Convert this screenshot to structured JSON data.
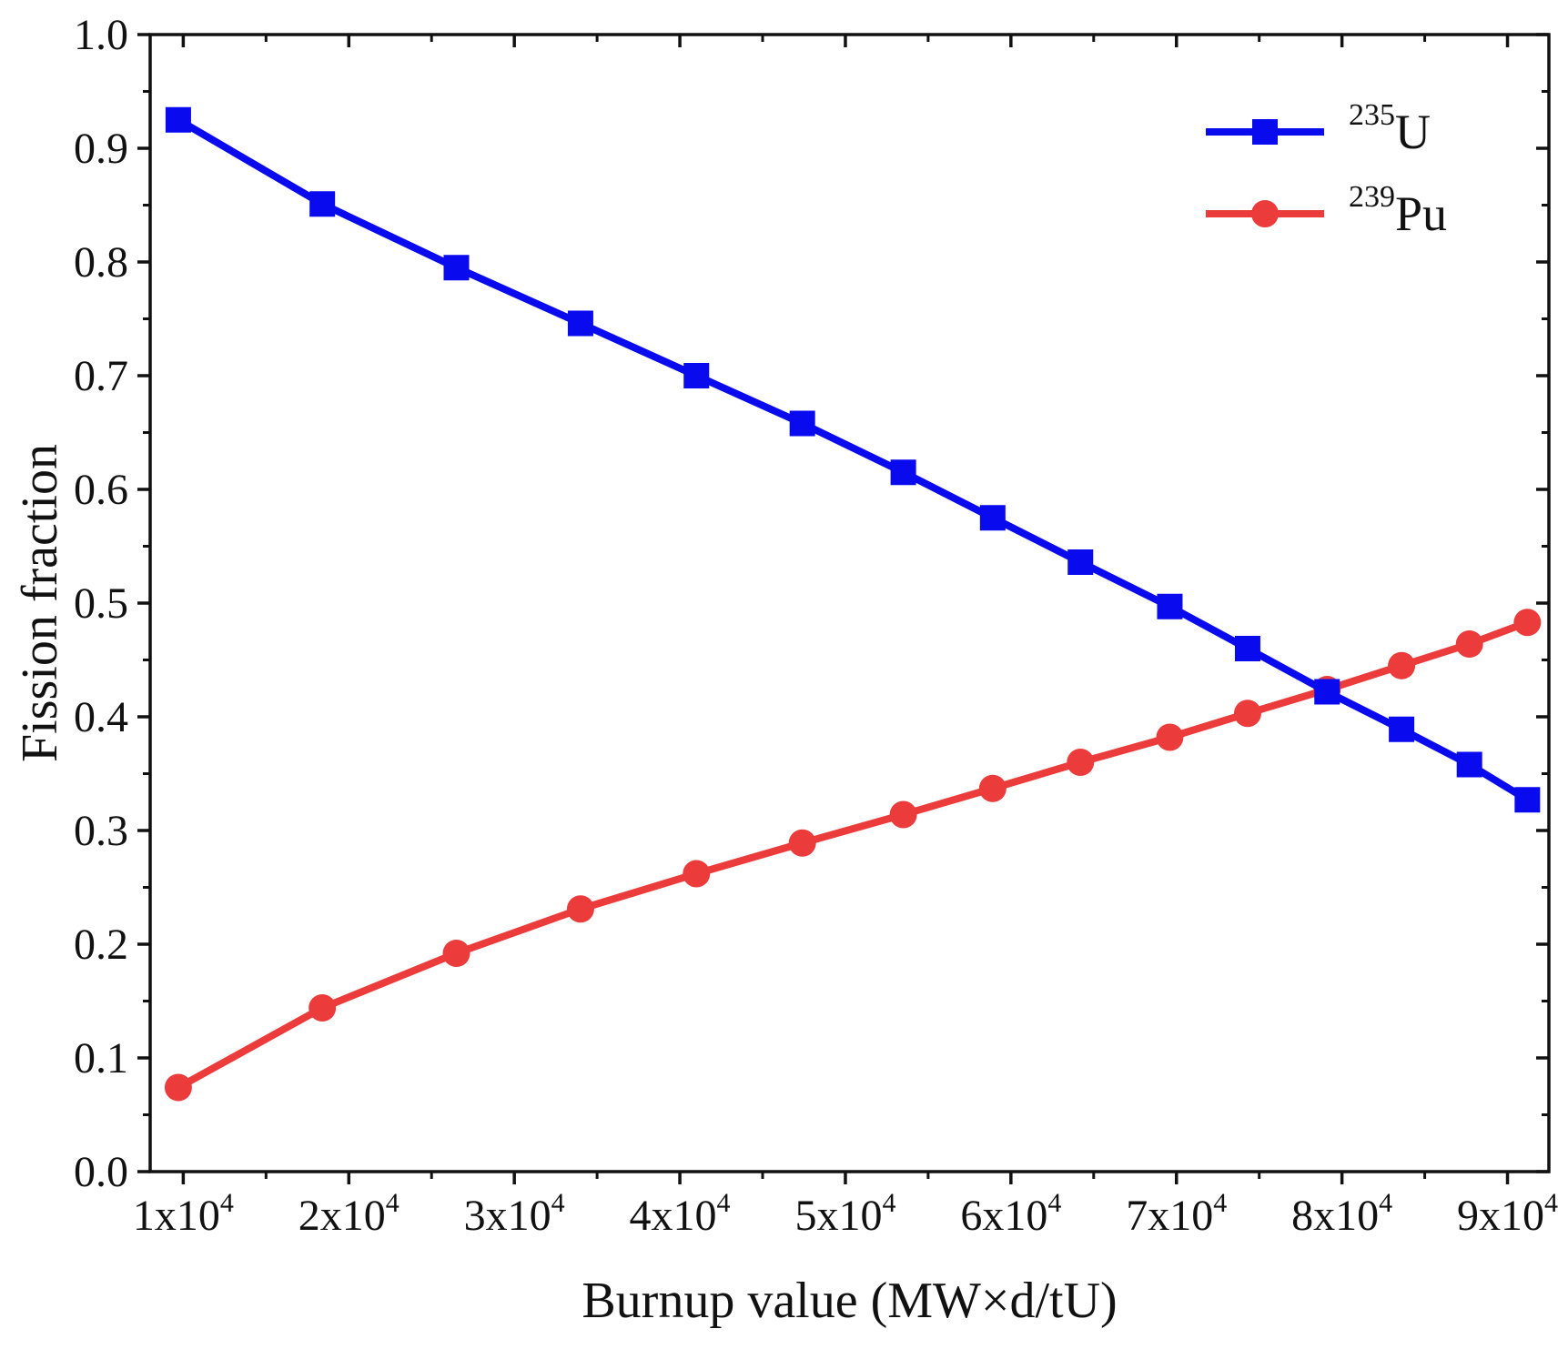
{
  "chart_data": {
    "type": "line",
    "title": "",
    "xlabel": "Burnup value (MW×d/tU)",
    "ylabel": "Fission fraction",
    "xlim": [
      8000,
      92500
    ],
    "ylim": [
      0.0,
      1.0
    ],
    "grid": false,
    "legend_position": "top-right",
    "x_ticks": [
      {
        "value": 10000,
        "mantissa": "1x10",
        "exponent": "4"
      },
      {
        "value": 20000,
        "mantissa": "2x10",
        "exponent": "4"
      },
      {
        "value": 30000,
        "mantissa": "3x10",
        "exponent": "4"
      },
      {
        "value": 40000,
        "mantissa": "4x10",
        "exponent": "4"
      },
      {
        "value": 50000,
        "mantissa": "5x10",
        "exponent": "4"
      },
      {
        "value": 60000,
        "mantissa": "6x10",
        "exponent": "4"
      },
      {
        "value": 70000,
        "mantissa": "7x10",
        "exponent": "4"
      },
      {
        "value": 80000,
        "mantissa": "8x10",
        "exponent": "4"
      },
      {
        "value": 90000,
        "mantissa": "9x10",
        "exponent": "4"
      }
    ],
    "y_ticks": [
      "0.0",
      "0.1",
      "0.2",
      "0.3",
      "0.4",
      "0.5",
      "0.6",
      "0.7",
      "0.8",
      "0.9",
      "1.0"
    ],
    "series": [
      {
        "name": "235U",
        "legend_sup": "235",
        "legend_base": "U",
        "color": "#0a0aee",
        "marker": "square",
        "x": [
          9700,
          18400,
          26500,
          34000,
          41000,
          47400,
          53500,
          58900,
          64200,
          69600,
          74300,
          79100,
          83600,
          87700,
          91200
        ],
        "values": [
          0.925,
          0.851,
          0.795,
          0.746,
          0.7,
          0.658,
          0.615,
          0.575,
          0.536,
          0.497,
          0.46,
          0.422,
          0.389,
          0.358,
          0.327
        ]
      },
      {
        "name": "239Pu",
        "legend_sup": "239",
        "legend_base": "Pu",
        "color": "#ec3b3b",
        "marker": "circle",
        "x": [
          9700,
          18400,
          26500,
          34000,
          41000,
          47400,
          53500,
          58900,
          64200,
          69600,
          74300,
          79100,
          83600,
          87700,
          91200
        ],
        "values": [
          0.074,
          0.144,
          0.192,
          0.231,
          0.262,
          0.289,
          0.314,
          0.337,
          0.36,
          0.382,
          0.403,
          0.424,
          0.445,
          0.464,
          0.483
        ]
      }
    ]
  }
}
